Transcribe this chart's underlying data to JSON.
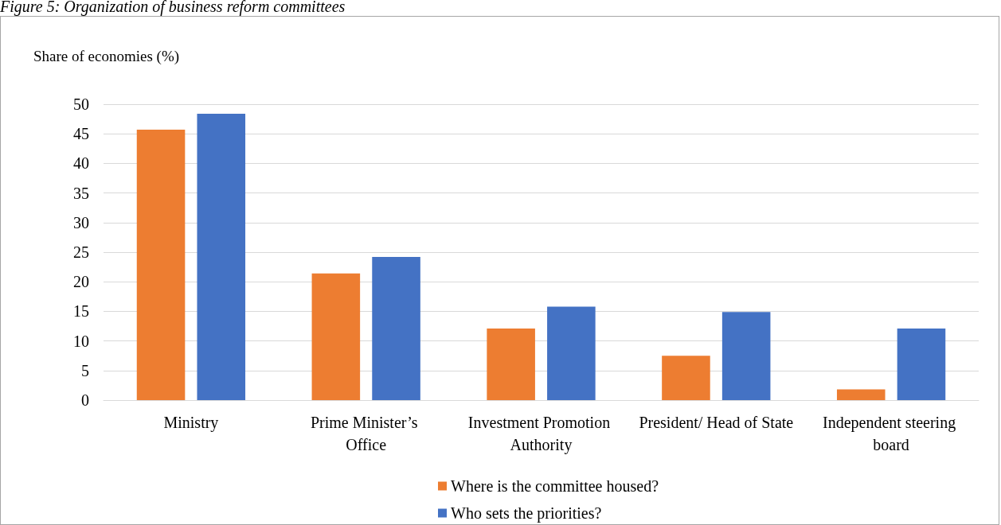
{
  "chart_data": {
    "type": "bar",
    "title": "Figure 5: Organization of business reform committees",
    "ylabel": "Share of economies (%)",
    "categories": [
      "Ministry",
      "Prime Minister’s Office",
      "Investment Promotion Authority",
      "President/ Head of State",
      "Independent steering board"
    ],
    "series": [
      {
        "name": "Where is the committee housed?",
        "color": "#ed7d31",
        "values": [
          45.7,
          21.4,
          12.1,
          7.5,
          1.8
        ]
      },
      {
        "name": "Who sets the priorities?",
        "color": "#4472c4",
        "values": [
          48.4,
          24.2,
          15.8,
          14.9,
          12.1
        ]
      }
    ],
    "ylim": [
      0,
      50
    ],
    "yticks": [
      0,
      5,
      10,
      15,
      20,
      25,
      30,
      35,
      40,
      45,
      50
    ],
    "grid": "y",
    "legend": "bottom"
  }
}
